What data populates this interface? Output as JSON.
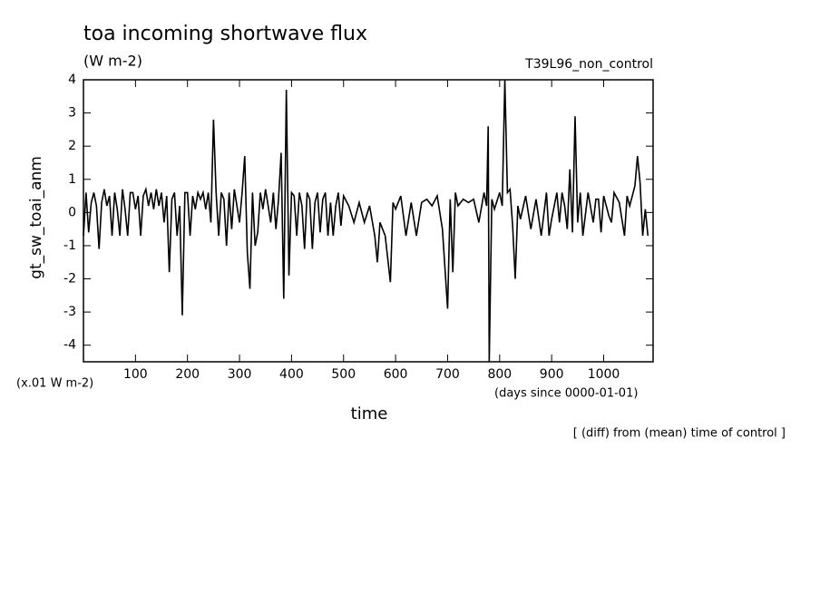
{
  "chart_data": {
    "type": "line",
    "title": "toa incoming shortwave flux",
    "subtitle": "(W m-2)",
    "run_label": "T39L96_non_control",
    "y_label": "gt_sw_toai_anm",
    "scale_note": "(x.01 W m-2)",
    "x_label": "time",
    "x_units": "(days since 0000-01-01)",
    "footnote": "[ (diff) from (mean) time of control ]",
    "color": "#000000",
    "xlim": [
      0,
      1095
    ],
    "ylim": [
      -4.5,
      4
    ],
    "xticks": [
      100,
      200,
      300,
      400,
      500,
      600,
      700,
      800,
      900,
      1000
    ],
    "yticks": [
      -4,
      -3,
      -2,
      -1,
      0,
      1,
      2,
      3,
      4
    ],
    "x": [
      0,
      5,
      10,
      15,
      20,
      25,
      30,
      35,
      40,
      45,
      50,
      55,
      60,
      65,
      70,
      75,
      80,
      85,
      90,
      95,
      100,
      105,
      110,
      115,
      120,
      125,
      130,
      135,
      140,
      145,
      150,
      155,
      160,
      165,
      170,
      175,
      180,
      185,
      190,
      195,
      200,
      205,
      210,
      215,
      220,
      225,
      230,
      235,
      240,
      245,
      250,
      255,
      260,
      265,
      270,
      275,
      280,
      285,
      290,
      295,
      300,
      305,
      310,
      315,
      320,
      325,
      330,
      335,
      340,
      345,
      350,
      355,
      360,
      365,
      370,
      375,
      380,
      385,
      390,
      395,
      400,
      405,
      410,
      415,
      420,
      425,
      430,
      435,
      440,
      445,
      450,
      455,
      460,
      465,
      470,
      475,
      480,
      485,
      490,
      495,
      500,
      510,
      520,
      530,
      540,
      550,
      560,
      565,
      570,
      580,
      590,
      595,
      600,
      610,
      620,
      630,
      640,
      650,
      660,
      670,
      680,
      690,
      700,
      705,
      710,
      715,
      720,
      730,
      740,
      750,
      760,
      770,
      775,
      778,
      780,
      785,
      790,
      800,
      805,
      810,
      815,
      820,
      825,
      830,
      835,
      840,
      850,
      860,
      870,
      880,
      890,
      895,
      900,
      910,
      915,
      920,
      925,
      930,
      935,
      940,
      945,
      950,
      955,
      960,
      970,
      980,
      985,
      990,
      995,
      1000,
      1010,
      1015,
      1020,
      1030,
      1040,
      1045,
      1050,
      1060,
      1065,
      1070,
      1075,
      1080,
      1085
    ],
    "values": [
      -0.7,
      0.6,
      -0.6,
      0.3,
      0.6,
      0.2,
      -1.1,
      0.3,
      0.7,
      0.2,
      0.5,
      -0.7,
      0.6,
      0.1,
      -0.7,
      0.7,
      0.1,
      -0.7,
      0.6,
      0.6,
      0.1,
      0.5,
      -0.7,
      0.5,
      0.7,
      0.2,
      0.6,
      0.1,
      0.7,
      0.2,
      0.6,
      -0.3,
      0.5,
      -1.8,
      0.4,
      0.6,
      -0.7,
      0.2,
      -3.1,
      0.6,
      0.6,
      -0.7,
      0.5,
      0.1,
      0.6,
      0.4,
      0.6,
      0.1,
      0.6,
      -0.3,
      2.8,
      0.6,
      -0.7,
      0.6,
      0.4,
      -1.0,
      0.6,
      -0.5,
      0.7,
      0.2,
      -0.3,
      0.6,
      1.7,
      -1.2,
      -2.3,
      0.6,
      -1.0,
      -0.6,
      0.6,
      0.1,
      0.7,
      0.2,
      -0.3,
      0.6,
      -0.5,
      0.4,
      1.8,
      -2.6,
      3.7,
      -1.9,
      0.6,
      0.5,
      -0.7,
      0.6,
      0.2,
      -1.1,
      0.6,
      0.4,
      -1.1,
      0.3,
      0.6,
      -0.6,
      0.4,
      0.6,
      -0.7,
      0.3,
      -0.7,
      0.2,
      0.6,
      -0.4,
      0.5,
      0.2,
      -0.3,
      0.3,
      -0.3,
      0.2,
      -0.7,
      -1.5,
      -0.3,
      -0.7,
      -2.1,
      0.3,
      0.1,
      0.5,
      -0.7,
      0.3,
      -0.7,
      0.3,
      0.4,
      0.2,
      0.5,
      -0.5,
      -2.9,
      0.4,
      -1.8,
      0.6,
      0.2,
      0.4,
      0.3,
      0.4,
      -0.3,
      0.6,
      0.2,
      2.6,
      -4.5,
      0.4,
      0.1,
      0.6,
      0.2,
      4.0,
      0.6,
      0.7,
      -0.4,
      -2.0,
      0.2,
      -0.2,
      0.5,
      -0.5,
      0.4,
      -0.7,
      0.6,
      -0.7,
      -0.2,
      0.6,
      -0.3,
      0.6,
      0.2,
      -0.5,
      1.3,
      -0.6,
      2.9,
      -0.3,
      0.6,
      -0.7,
      0.6,
      -0.3,
      0.4,
      0.4,
      -0.6,
      0.5,
      -0.1,
      -0.3,
      0.6,
      0.3,
      -0.7,
      0.5,
      0.2,
      0.8,
      1.7,
      0.9,
      -0.7,
      0.1,
      -0.7
    ]
  }
}
